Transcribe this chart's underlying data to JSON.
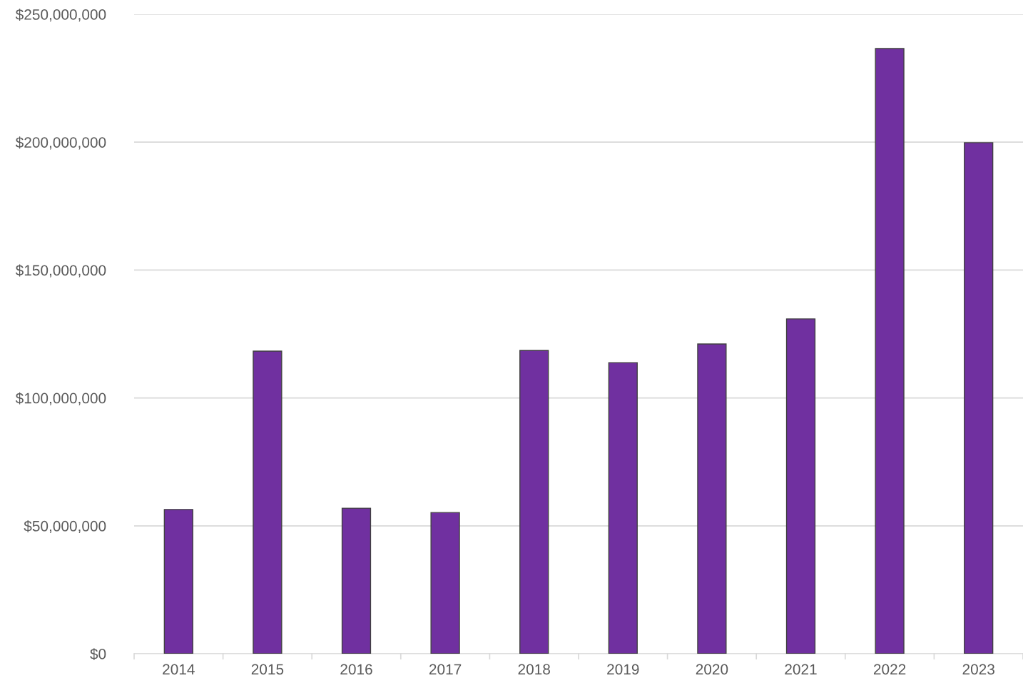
{
  "chart_data": {
    "type": "bar",
    "categories": [
      "2014",
      "2015",
      "2016",
      "2017",
      "2018",
      "2019",
      "2020",
      "2021",
      "2022",
      "2023"
    ],
    "values": [
      56400000,
      118300000,
      56900000,
      55200000,
      118600000,
      113800000,
      121100000,
      130900000,
      236600000,
      199800000
    ],
    "color": "#7030a0",
    "ylim": [
      0,
      250000000
    ],
    "yticks": [
      {
        "value": 0,
        "label": "$0"
      },
      {
        "value": 50000000,
        "label": "$50,000,000"
      },
      {
        "value": 100000000,
        "label": "$100,000,000"
      },
      {
        "value": 150000000,
        "label": "$150,000,000"
      },
      {
        "value": 200000000,
        "label": "$200,000,000"
      },
      {
        "value": 250000000,
        "label": "$250,000,000"
      }
    ],
    "grid": "y",
    "legend": false
  }
}
